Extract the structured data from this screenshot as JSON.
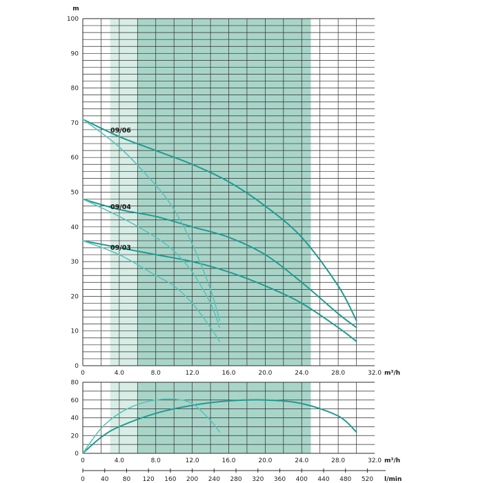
{
  "chart_data": [
    {
      "type": "line",
      "ylabel": "m",
      "xlabel": "m³/h",
      "xlim": [
        0,
        32
      ],
      "ylim": [
        0,
        100
      ],
      "x_ticks": [
        "0",
        "4.0",
        "8.0",
        "12.0",
        "16.0",
        "20.0",
        "24.0",
        "28.0",
        "32.0"
      ],
      "y_ticks": [
        "0",
        "10",
        "20",
        "30",
        "40",
        "50",
        "60",
        "70",
        "80",
        "90",
        "100"
      ],
      "grid": true,
      "band_outer": [
        3,
        25
      ],
      "band_inner": [
        6,
        25
      ],
      "series": [
        {
          "name": "09/06",
          "style": "main",
          "x": [
            0,
            4,
            8,
            12,
            16,
            20,
            24,
            28,
            30
          ],
          "y": [
            71,
            66,
            62,
            58,
            53,
            46,
            37,
            23,
            13
          ]
        },
        {
          "name": "09/04",
          "style": "main",
          "x": [
            0,
            4,
            8,
            12,
            16,
            20,
            24,
            28,
            30
          ],
          "y": [
            48,
            45,
            43,
            40,
            37,
            32,
            24,
            15,
            11
          ]
        },
        {
          "name": "09/03",
          "style": "main",
          "x": [
            0,
            4,
            8,
            12,
            16,
            20,
            24,
            28,
            30
          ],
          "y": [
            36,
            34,
            32,
            30,
            27,
            23,
            18,
            11,
            7
          ]
        },
        {
          "style": "secondary",
          "x": [
            0,
            4,
            8,
            10,
            12,
            14,
            15
          ],
          "y": [
            71,
            63,
            52,
            45,
            35,
            22,
            13
          ]
        },
        {
          "style": "secondary",
          "x": [
            0,
            4,
            8,
            10,
            12,
            14,
            15
          ],
          "y": [
            48,
            43,
            37,
            33,
            27,
            18,
            11
          ]
        },
        {
          "style": "secondary",
          "x": [
            0,
            4,
            8,
            10,
            12,
            14,
            15
          ],
          "y": [
            36,
            32,
            26,
            23,
            18,
            11,
            7
          ]
        }
      ]
    },
    {
      "type": "line",
      "ylabel": "",
      "xlabel": "m³/h",
      "xlabel2": "l/min",
      "xlim": [
        0,
        32
      ],
      "ylim": [
        0,
        80
      ],
      "x_ticks": [
        "0",
        "4.0",
        "8.0",
        "12.0",
        "16.0",
        "20.0",
        "24.0",
        "28.0",
        "32.0"
      ],
      "x2_ticks": [
        "0",
        "40",
        "80",
        "120",
        "160",
        "200",
        "240",
        "280",
        "320",
        "360",
        "400",
        "440",
        "480",
        "520"
      ],
      "y_ticks": [
        "0",
        "20",
        "40",
        "60",
        "80"
      ],
      "grid": true,
      "band_outer": [
        3,
        25
      ],
      "band_inner": [
        6,
        25
      ],
      "series": [
        {
          "style": "main",
          "x": [
            0,
            2,
            4,
            8,
            12,
            16,
            20,
            24,
            28,
            30
          ],
          "y": [
            0,
            18,
            30,
            45,
            54,
            59,
            60,
            56,
            42,
            24
          ]
        },
        {
          "style": "secondary",
          "x": [
            0,
            2,
            4,
            6,
            8,
            10,
            12,
            14,
            15
          ],
          "y": [
            0,
            28,
            45,
            55,
            60,
            61,
            56,
            37,
            24
          ]
        }
      ]
    }
  ],
  "colors": {
    "main_curve": "#1f9b91",
    "secondary_curve": "#5cc2b8",
    "band_outer": "#d7ede6",
    "band_inner": "#a9d5c9",
    "grid": "#2a2a2a"
  }
}
